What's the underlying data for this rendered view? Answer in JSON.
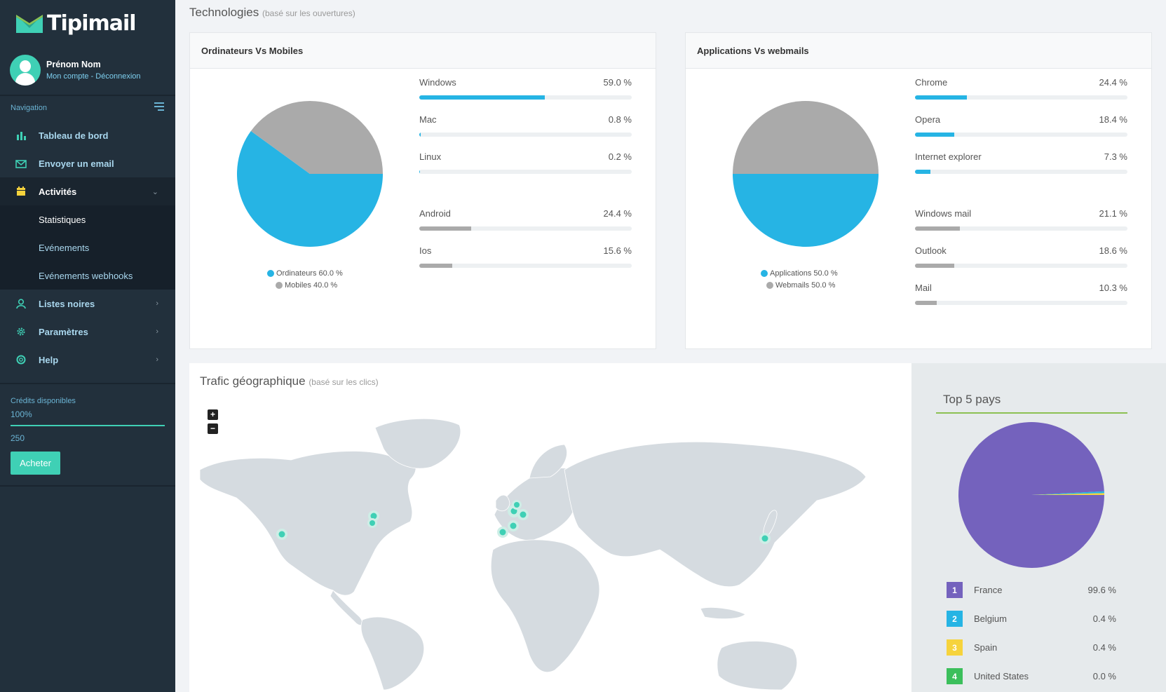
{
  "app": {
    "name": "Tipimail"
  },
  "user": {
    "name": "Prénom Nom",
    "links": "Mon compte - Déconnexion"
  },
  "nav": {
    "title": "Navigation",
    "items": [
      {
        "label": "Tableau de bord",
        "icon": "bar-chart-icon"
      },
      {
        "label": "Envoyer un email",
        "icon": "envelope-icon"
      },
      {
        "label": "Activités",
        "icon": "calendar-icon"
      },
      {
        "label": "Listes noires",
        "icon": "user-icon"
      },
      {
        "label": "Paramètres",
        "icon": "gear-icon"
      },
      {
        "label": "Help",
        "icon": "lifebuoy-icon"
      }
    ],
    "sub_items": [
      {
        "label": "Statistiques"
      },
      {
        "label": "Evénements"
      },
      {
        "label": "Evénements webhooks"
      }
    ]
  },
  "credits": {
    "label": "Crédits disponibles",
    "percent_label": "100%",
    "percent": 1.0,
    "amount": "250",
    "buy_label": "Acheter"
  },
  "technologies": {
    "title": "Technologies",
    "subtitle": "(basé sur les ouvertures)",
    "devices": {
      "title": "Ordinateurs Vs Mobiles",
      "legend": [
        {
          "label": "Ordinateurs 60.0 %",
          "color": "#26b4e4",
          "value": 60.0
        },
        {
          "label": "Mobiles 40.0 %",
          "color": "#aaaaaa",
          "value": 40.0
        }
      ],
      "stats": [
        {
          "label": "Windows",
          "value_label": "59.0 %",
          "value": 59.0,
          "kind": "blue"
        },
        {
          "label": "Mac",
          "value_label": "0.8 %",
          "value": 0.8,
          "kind": "blue"
        },
        {
          "label": "Linux",
          "value_label": "0.2 %",
          "value": 0.2,
          "kind": "blue"
        },
        {
          "label": "Android",
          "value_label": "24.4 %",
          "value": 24.4,
          "kind": "gray"
        },
        {
          "label": "Ios",
          "value_label": "15.6 %",
          "value": 15.6,
          "kind": "gray"
        }
      ]
    },
    "clients": {
      "title": "Applications Vs webmails",
      "legend": [
        {
          "label": "Applications 50.0 %",
          "color": "#26b4e4",
          "value": 50.0
        },
        {
          "label": "Webmails 50.0 %",
          "color": "#aaaaaa",
          "value": 50.0
        }
      ],
      "stats": [
        {
          "label": "Chrome",
          "value_label": "24.4 %",
          "value": 24.4,
          "kind": "blue"
        },
        {
          "label": "Opera",
          "value_label": "18.4 %",
          "value": 18.4,
          "kind": "blue"
        },
        {
          "label": "Internet explorer",
          "value_label": "7.3 %",
          "value": 7.3,
          "kind": "blue"
        },
        {
          "label": "Windows mail",
          "value_label": "21.1 %",
          "value": 21.1,
          "kind": "gray"
        },
        {
          "label": "Outlook",
          "value_label": "18.6 %",
          "value": 18.6,
          "kind": "gray"
        },
        {
          "label": "Mail",
          "value_label": "10.3 %",
          "value": 10.3,
          "kind": "gray"
        }
      ]
    }
  },
  "geo": {
    "title": "Trafic géographique",
    "subtitle": "(basé sur les clics)",
    "zoom_in": "+",
    "zoom_out": "−"
  },
  "top5": {
    "title": "Top 5 pays",
    "countries": [
      {
        "rank": "1",
        "name": "France",
        "value_label": "99.6 %",
        "value": 99.6,
        "color": "#7462bd"
      },
      {
        "rank": "2",
        "name": "Belgium",
        "value_label": "0.4 %",
        "value": 0.4,
        "color": "#26b4e4"
      },
      {
        "rank": "3",
        "name": "Spain",
        "value_label": "0.4 %",
        "value": 0.4,
        "color": "#f6d33c"
      },
      {
        "rank": "4",
        "name": "United States",
        "value_label": "0.0 %",
        "value": 0.0,
        "color": "#3bbf5b"
      }
    ]
  }
}
